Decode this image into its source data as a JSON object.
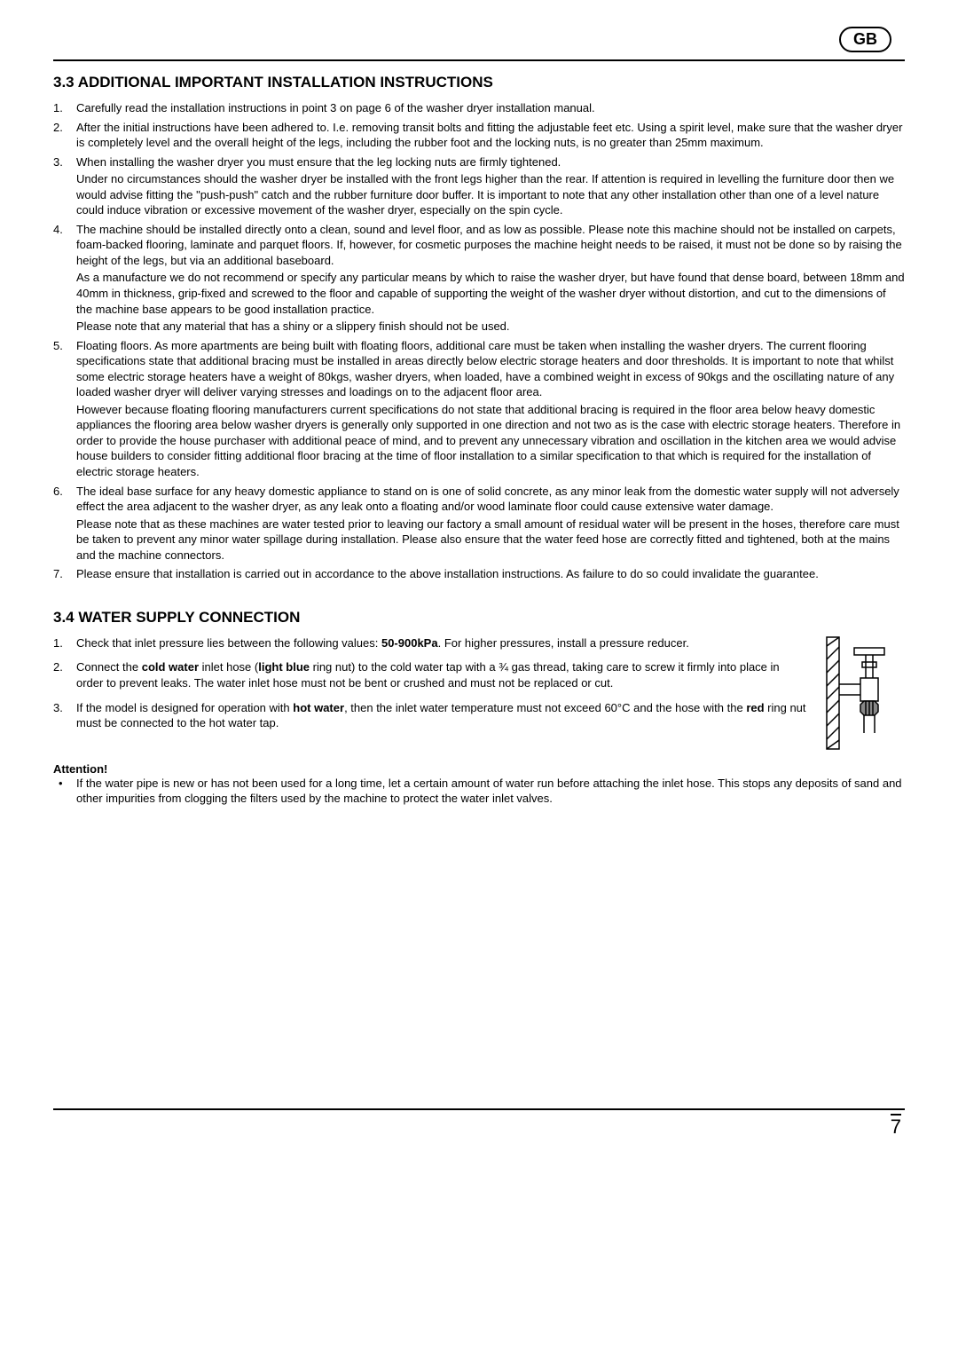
{
  "badge": "GB",
  "section33": {
    "title": "3.3 ADDITIONAL IMPORTANT INSTALLATION INSTRUCTIONS",
    "items": [
      {
        "num": "1.",
        "paras": [
          "Carefully read the installation instructions in point 3 on page 6 of the washer dryer installation manual."
        ]
      },
      {
        "num": "2.",
        "paras": [
          "After the initial instructions have been adhered to. I.e. removing transit bolts and fitting the adjustable feet etc. Using a spirit level, make sure that the washer dryer is completely level and the overall height of the legs, including the rubber foot and the locking nuts, is no greater than 25mm maximum."
        ]
      },
      {
        "num": "3.",
        "paras": [
          "When installing the washer dryer you must ensure that the leg locking nuts are firmly tightened.",
          "Under no circumstances should the washer dryer be installed with the front legs higher than the rear. If attention is required in levelling the furniture door then we would advise fitting the \"push-push\" catch and the rubber furniture door buffer. It is important to note that any other installation other than one of a level nature could induce vibration or excessive movement of the washer dryer, especially on the spin cycle."
        ]
      },
      {
        "num": "4.",
        "paras": [
          "The machine should be installed directly onto a clean, sound and level floor, and as low as possible. Please note this machine should not be installed on carpets, foam-backed flooring, laminate and parquet floors. If, however, for cosmetic purposes the machine height needs to be raised, it must not be done so by raising the height of the legs, but via an additional baseboard.",
          "As a manufacture we do not recommend or specify any particular means by which to raise the washer dryer, but have found that dense board, between 18mm and 40mm in thickness, grip-fixed and screwed to the floor and capable of supporting the weight of the washer dryer without distortion, and cut to the dimensions of the machine base appears to be good installation practice.",
          "Please note that any material that has a shiny or a slippery finish should not be used."
        ]
      },
      {
        "num": "5.",
        "paras": [
          "Floating floors. As more apartments are being built with floating floors, additional care must be taken when installing the washer dryers. The current flooring specifications state that additional bracing must be installed in areas directly below electric storage heaters and door thresholds. It is important to note that whilst some electric storage heaters have a weight of 80kgs, washer dryers, when loaded, have a combined weight in excess of 90kgs and the oscillating nature of any loaded washer dryer will deliver varying stresses and loadings on to the adjacent floor area.",
          "However because floating flooring manufacturers current specifications do not state that additional bracing is required in the floor area below heavy domestic appliances the flooring area below washer dryers is generally only supported in one direction and not two as is the case with electric storage heaters. Therefore in order to provide the house purchaser with additional peace of mind, and to prevent any unnecessary vibration and oscillation in the kitchen area we would advise house builders to consider fitting additional floor bracing at the time of floor installation to a similar specification to that which is required for the installation of electric storage heaters."
        ]
      },
      {
        "num": "6.",
        "paras": [
          "The ideal base surface for any heavy domestic appliance to stand on is one of solid concrete, as any  minor leak from the domestic water supply will not adversely effect the area adjacent to the washer dryer, as any leak onto a floating and/or wood laminate floor could cause extensive water damage.",
          "Please note that as these machines are water tested prior to leaving our factory a small amount of residual water will be present in the hoses, therefore care must be taken to prevent any minor water spillage during installation. Please also ensure that the water feed hose are correctly fitted and tightened, both at the mains and the machine connectors."
        ]
      },
      {
        "num": "7.",
        "paras": [
          "Please ensure that installation is carried out in accordance to the above installation instructions. As failure to do so could invalidate the guarantee."
        ]
      }
    ]
  },
  "section34": {
    "title": "3.4 WATER SUPPLY CONNECTION",
    "items": [
      {
        "num": "1.",
        "html": "Check that inlet pressure lies between the following values: <b>50-900kPa</b>. For higher pressures, install a pressure reducer."
      },
      {
        "num": "2.",
        "html": "Connect the <b>cold water</b> inlet hose (<b>light blue</b> ring nut) to the cold water tap with a ¾ gas thread, taking care to screw it firmly into place in order to prevent leaks. The water inlet hose must not be bent or crushed and must not be replaced or cut."
      },
      {
        "num": "3.",
        "html": "If the model is designed for operation with  <b>hot water</b>, then the inlet water temperature must not exceed 60°C and the hose with the <b>red</b> ring nut must be connected to the hot water tap."
      }
    ],
    "attentionLabel": "Attention!",
    "attentionText": "If the water pipe is new or has not been used for a long time, let a certain amount of water run before attaching the inlet hose. This stops any deposits of sand and other impurities from clogging the filters used by the machine to protect the water inlet valves."
  },
  "pageNumber": "7"
}
